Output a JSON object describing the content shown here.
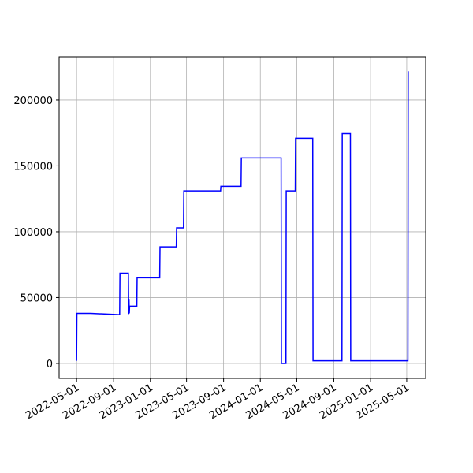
{
  "chart_data": {
    "type": "line",
    "x": [
      "2022-05-01",
      "2022-05-02",
      "2022-06-17",
      "2022-09-21",
      "2022-09-22",
      "2022-10-20",
      "2022-10-21",
      "2022-10-22",
      "2022-10-23",
      "2022-10-24",
      "2022-11-17",
      "2022-11-18",
      "2023-02-01",
      "2023-02-02",
      "2023-03-28",
      "2023-03-29",
      "2023-04-21",
      "2023-04-22",
      "2023-08-22",
      "2023-08-23",
      "2023-10-29",
      "2023-10-30",
      "2024-03-10",
      "2024-03-11",
      "2024-03-26",
      "2024-03-27",
      "2024-04-26",
      "2024-04-27",
      "2024-06-23",
      "2024-06-24",
      "2024-09-28",
      "2024-09-29",
      "2024-10-26",
      "2024-10-27",
      "2025-05-05",
      "2025-05-06"
    ],
    "series": [
      {
        "color": "#0000ff",
        "values": [
          2000,
          38000,
          38000,
          37000,
          68500,
          68500,
          37500,
          49000,
          38000,
          43500,
          43500,
          65000,
          65000,
          88500,
          88500,
          103000,
          103000,
          131000,
          131000,
          134500,
          134500,
          156000,
          156000,
          0,
          0,
          131000,
          131000,
          171000,
          171000,
          2000,
          2000,
          174500,
          174500,
          2000,
          2000,
          222000
        ]
      }
    ],
    "xlim": [
      "2022-03-04",
      "2025-07-03"
    ],
    "xticks": [
      "2022-05-01",
      "2022-09-01",
      "2023-01-01",
      "2023-05-01",
      "2023-09-01",
      "2024-01-01",
      "2024-05-01",
      "2024-09-01",
      "2025-01-01",
      "2025-05-01"
    ],
    "ylim": [
      -11400,
      232900
    ],
    "yticks": [
      0,
      50000,
      100000,
      150000,
      200000
    ],
    "grid": true
  }
}
